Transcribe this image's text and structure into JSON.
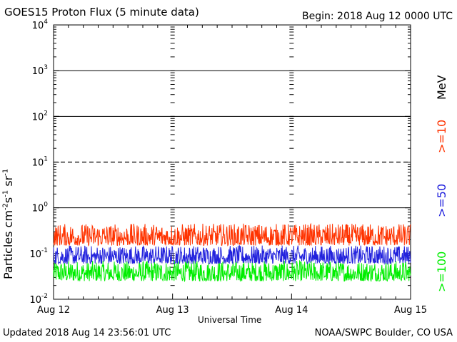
{
  "header": {
    "title": "GOES15 Proton Flux (5 minute data)",
    "begin": "Begin: 2018 Aug 12 0000 UTC"
  },
  "footer": {
    "updated": "Updated 2018 Aug 14 23:56:01 UTC",
    "source": "NOAA/SWPC Boulder, CO USA"
  },
  "axes": {
    "xlabel": "Universal Time",
    "ylabel_base": "Particles cm",
    "ylabel_exp1": "-2",
    "ylabel_mid1": "s",
    "ylabel_exp2": "-1",
    "ylabel_mid2": "sr",
    "ylabel_exp3": "-1"
  },
  "legend": {
    "unit": "MeV",
    "items": [
      {
        "label": ">=10",
        "color": "#ff3300"
      },
      {
        "label": ">=50",
        "color": "#2222dd"
      },
      {
        "label": ">=100",
        "color": "#00ee00"
      }
    ]
  },
  "chart_data": {
    "type": "line",
    "title": "GOES15 Proton Flux (5 minute data)",
    "xlabel": "Universal Time",
    "ylabel": "Particles cm-2 s-1 sr-1",
    "y_scale": "log",
    "ylim": [
      0.01,
      10000
    ],
    "y_ticks": [
      {
        "base": "10",
        "exp": "-2",
        "value": 0.01
      },
      {
        "base": "10",
        "exp": "-1",
        "value": 0.1
      },
      {
        "base": "10",
        "exp": "0",
        "value": 1
      },
      {
        "base": "10",
        "exp": "1",
        "value": 10
      },
      {
        "base": "10",
        "exp": "2",
        "value": 100
      },
      {
        "base": "10",
        "exp": "3",
        "value": 1000
      },
      {
        "base": "10",
        "exp": "4",
        "value": 10000
      }
    ],
    "x_ticks": [
      "Aug 12",
      "Aug 13",
      "Aug 14",
      "Aug 15"
    ],
    "xlim": [
      "2018-08-12 00:00",
      "2018-08-15 00:00"
    ],
    "threshold_lines": [
      {
        "value": 10,
        "style": "dashed"
      }
    ],
    "solid_lines": [
      1,
      100,
      1000
    ],
    "grid": false,
    "series": [
      {
        "name": ">=10",
        "color": "#ff3300",
        "typical_range": [
          0.15,
          0.45
        ]
      },
      {
        "name": ">=50",
        "color": "#2222dd",
        "typical_range": [
          0.06,
          0.15
        ]
      },
      {
        "name": ">=100",
        "color": "#00ee00",
        "typical_range": [
          0.025,
          0.07
        ]
      }
    ]
  }
}
